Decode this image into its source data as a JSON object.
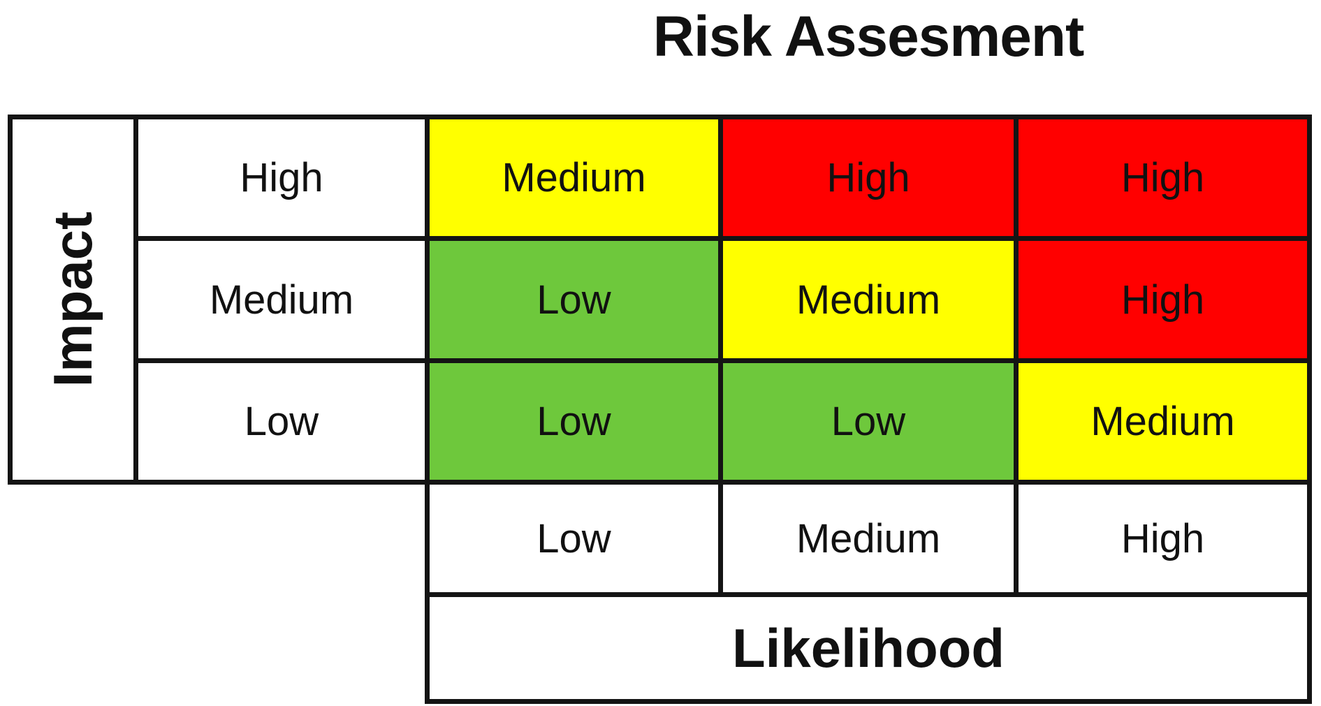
{
  "title": "Risk Assesment",
  "impact_axis": {
    "label": "Impact",
    "levels": [
      "High",
      "Medium",
      "Low"
    ]
  },
  "likelihood_axis": {
    "label": "Likelihood",
    "levels": [
      "Low",
      "Medium",
      "High"
    ]
  },
  "matrix": {
    "rows": [
      {
        "impact": "High",
        "cells": [
          {
            "label": "Medium",
            "level": "medium"
          },
          {
            "label": "High",
            "level": "high"
          },
          {
            "label": "High",
            "level": "high"
          }
        ]
      },
      {
        "impact": "Medium",
        "cells": [
          {
            "label": "Low",
            "level": "low"
          },
          {
            "label": "Medium",
            "level": "medium"
          },
          {
            "label": "High",
            "level": "high"
          }
        ]
      },
      {
        "impact": "Low",
        "cells": [
          {
            "label": "Low",
            "level": "low"
          },
          {
            "label": "Low",
            "level": "low"
          },
          {
            "label": "Medium",
            "level": "medium"
          }
        ]
      }
    ]
  },
  "colors": {
    "low": "#6EC83C",
    "medium": "#FFFF00",
    "high": "#FF0000",
    "border": "#141414",
    "text": "#111111",
    "background": "#FFFFFF"
  }
}
